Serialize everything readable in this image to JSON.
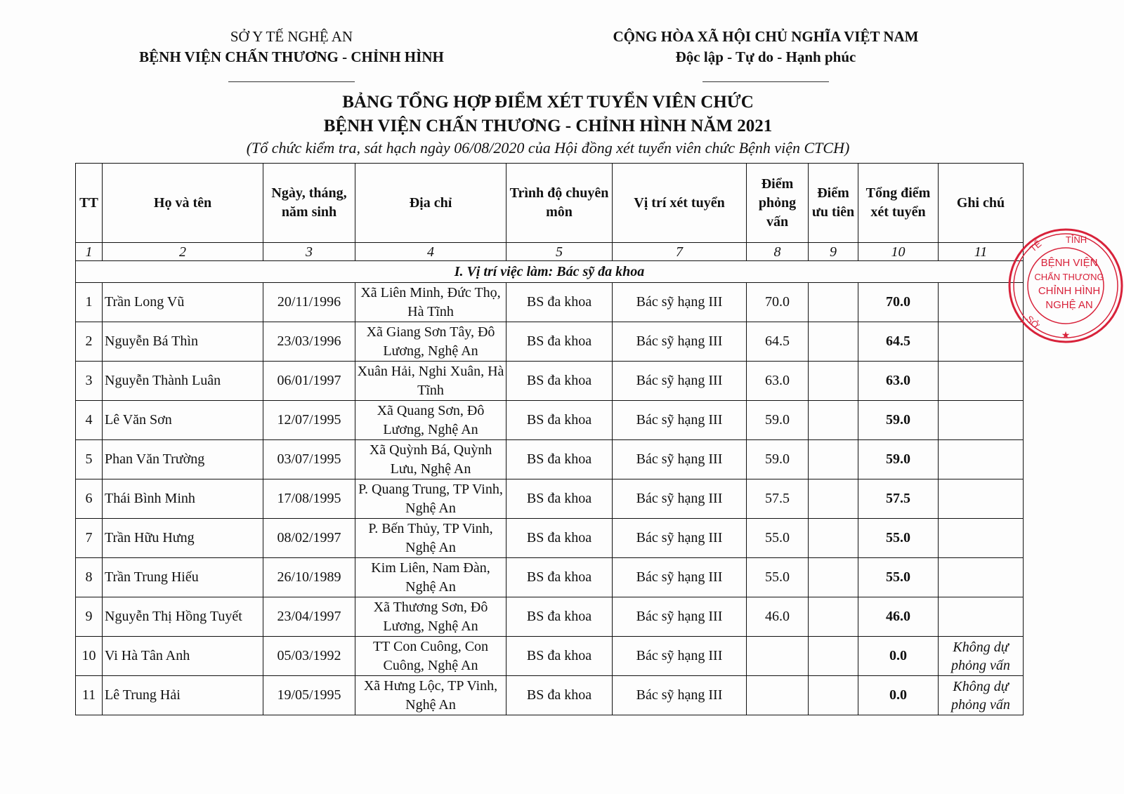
{
  "header_left": {
    "line1": "SỞ Y TẾ NGHỆ AN",
    "line2": "BỆNH VIỆN CHẤN THƯƠNG - CHỈNH HÌNH"
  },
  "header_right": {
    "line1": "CỘNG HÒA XÃ HỘI CHỦ NGHĨA VIỆT NAM",
    "line2": "Độc lập - Tự do - Hạnh phúc"
  },
  "title": {
    "line1": "BẢNG TỔNG HỢP ĐIỂM XÉT TUYỂN VIÊN CHỨC",
    "line2": "BỆNH VIỆN CHẤN THƯƠNG - CHỈNH HÌNH NĂM 2021",
    "subtitle": "(Tổ chức kiểm tra, sát hạch ngày 06/08/2020 của Hội đồng xét tuyển viên chức Bệnh viện CTCH)"
  },
  "table": {
    "columns": [
      "TT",
      "Họ và tên",
      "Ngày, tháng, năm sinh",
      "Địa chỉ",
      "Trình độ chuyên môn",
      "Vị trí xét tuyển",
      "Điểm phỏng vấn",
      "Điểm ưu tiên",
      "Tổng điểm xét tuyển",
      "Ghi chú"
    ],
    "column_numbers": [
      "1",
      "2",
      "3",
      "4",
      "5",
      "7",
      "8",
      "9",
      "10",
      "11"
    ],
    "section": "I. Vị trí việc làm: Bác sỹ đa khoa",
    "rows": [
      [
        "1",
        "Trần Long Vũ",
        "20/11/1996",
        "Xã Liên Minh, Đức Thọ, Hà Tĩnh",
        "BS đa khoa",
        "Bác sỹ hạng III",
        "70.0",
        "",
        "70.0",
        ""
      ],
      [
        "2",
        "Nguyễn Bá Thìn",
        "23/03/1996",
        "Xã Giang Sơn Tây, Đô Lương, Nghệ An",
        "BS đa khoa",
        "Bác sỹ hạng III",
        "64.5",
        "",
        "64.5",
        ""
      ],
      [
        "3",
        "Nguyễn Thành Luân",
        "06/01/1997",
        "Xuân Hải, Nghi Xuân, Hà Tĩnh",
        "BS đa khoa",
        "Bác sỹ hạng III",
        "63.0",
        "",
        "63.0",
        ""
      ],
      [
        "4",
        "Lê Văn Sơn",
        "12/07/1995",
        "Xã Quang Sơn, Đô Lương, Nghệ An",
        "BS đa khoa",
        "Bác sỹ hạng III",
        "59.0",
        "",
        "59.0",
        ""
      ],
      [
        "5",
        "Phan Văn Trường",
        "03/07/1995",
        "Xã Quỳnh Bá, Quỳnh Lưu, Nghệ An",
        "BS đa khoa",
        "Bác sỹ hạng III",
        "59.0",
        "",
        "59.0",
        ""
      ],
      [
        "6",
        "Thái Bình Minh",
        "17/08/1995",
        "P. Quang Trung, TP Vinh, Nghệ An",
        "BS đa khoa",
        "Bác sỹ hạng III",
        "57.5",
        "",
        "57.5",
        ""
      ],
      [
        "7",
        "Trần Hữu Hưng",
        "08/02/1997",
        "P. Bến Thủy, TP Vinh, Nghệ An",
        "BS đa khoa",
        "Bác sỹ hạng III",
        "55.0",
        "",
        "55.0",
        ""
      ],
      [
        "8",
        "Trần Trung Hiếu",
        "26/10/1989",
        "Kim Liên, Nam Đàn, Nghệ An",
        "BS đa khoa",
        "Bác sỹ hạng III",
        "55.0",
        "",
        "55.0",
        ""
      ],
      [
        "9",
        "Nguyễn Thị Hồng Tuyết",
        "23/04/1997",
        "Xã Thương Sơn, Đô Lương, Nghệ An",
        "BS đa khoa",
        "Bác sỹ hạng III",
        "46.0",
        "",
        "46.0",
        ""
      ],
      [
        "10",
        "Vi Hà Tân Anh",
        "05/03/1992",
        "TT Con Cuông, Con Cuông, Nghệ An",
        "BS đa khoa",
        "Bác sỹ hạng III",
        "",
        "",
        "0.0",
        "Không dự phỏng vấn"
      ],
      [
        "11",
        "Lê Trung Hải",
        "19/05/1995",
        "Xã Hưng Lộc, TP Vinh, Nghệ An",
        "BS đa khoa",
        "Bác sỹ hạng III",
        "",
        "",
        "0.0",
        "Không dự phỏng vấn"
      ]
    ]
  },
  "stamp": {
    "color": "#d8223a",
    "center": "BỆNH VIỆN CHẤN THƯƠNG CHỈNH HÌNH NGHỆ AN",
    "ring": "SỞ Y TẾ TỈNH NGHỆ AN"
  }
}
